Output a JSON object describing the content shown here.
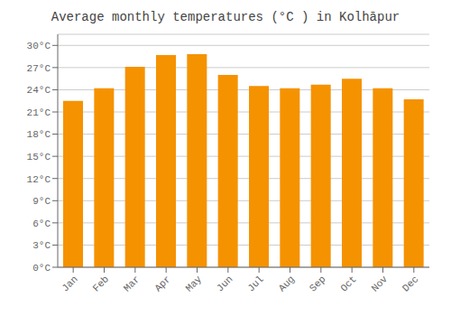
{
  "chart_data": {
    "type": "bar",
    "title": "Average monthly temperatures (°C ) in Kolhāpur",
    "categories": [
      "Jan",
      "Feb",
      "Mar",
      "Apr",
      "May",
      "Jun",
      "Jul",
      "Aug",
      "Sep",
      "Oct",
      "Nov",
      "Dec"
    ],
    "values": [
      22.5,
      24.2,
      27.1,
      28.7,
      28.8,
      26.0,
      24.5,
      24.2,
      24.7,
      25.5,
      24.2,
      22.7
    ],
    "color": "#F59200",
    "ylim": [
      0,
      31.5
    ],
    "yticks": [
      {
        "value": 0,
        "label": "0°C"
      },
      {
        "value": 3,
        "label": "3°C"
      },
      {
        "value": 6,
        "label": "6°C"
      },
      {
        "value": 9,
        "label": "9°C"
      },
      {
        "value": 12,
        "label": "12°C"
      },
      {
        "value": 15,
        "label": "15°C"
      },
      {
        "value": 18,
        "label": "18°C"
      },
      {
        "value": 21,
        "label": "21°C"
      },
      {
        "value": 24,
        "label": "24°C"
      },
      {
        "value": 27,
        "label": "27°C"
      },
      {
        "value": 30,
        "label": "30°C"
      }
    ],
    "grid": true
  }
}
